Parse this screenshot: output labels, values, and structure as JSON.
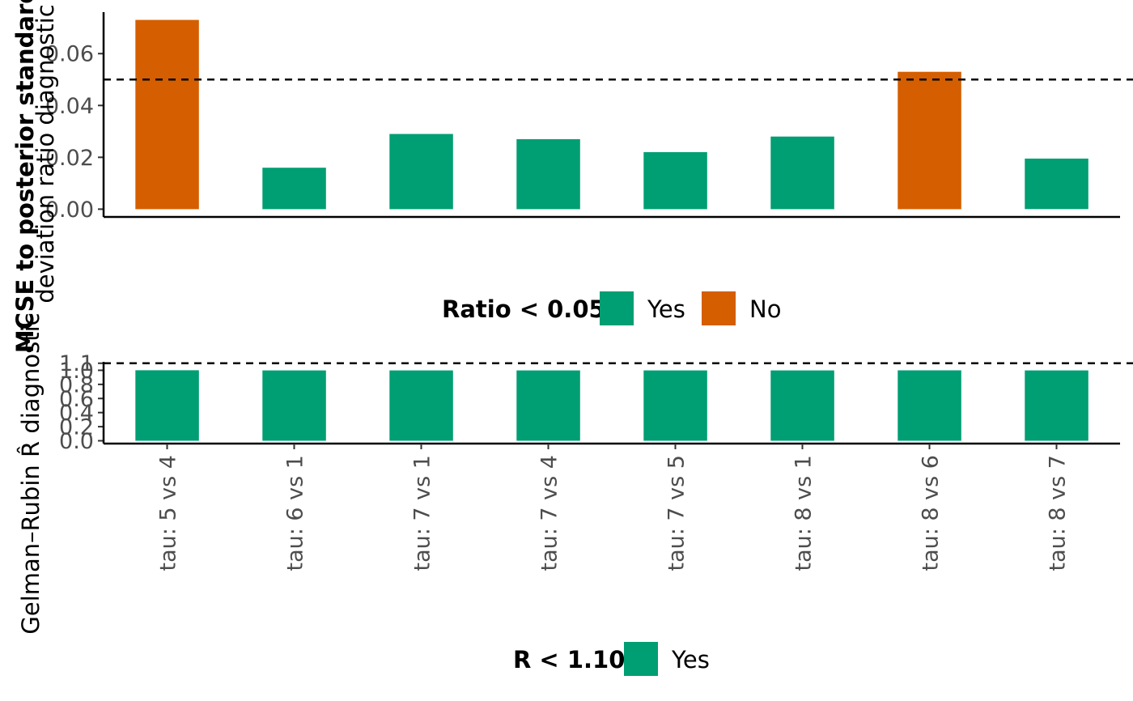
{
  "chart_data": [
    {
      "type": "bar",
      "ylabel_lines": [
        "MCSE to posterior standard",
        "deviation ratio diagnostic"
      ],
      "categories": [
        "tau: 5 vs 4",
        "tau: 6 vs 1",
        "tau: 7 vs 1",
        "tau: 7 vs 4",
        "tau: 7 vs 5",
        "tau: 8 vs 1",
        "tau: 8 vs 6",
        "tau: 8 vs 7"
      ],
      "values": [
        0.073,
        0.016,
        0.029,
        0.027,
        0.022,
        0.028,
        0.053,
        0.0195
      ],
      "groups": [
        "No",
        "Yes",
        "Yes",
        "Yes",
        "Yes",
        "Yes",
        "No",
        "Yes"
      ],
      "ylim": [
        -0.003,
        0.076
      ],
      "yticks": [
        0.0,
        0.02,
        0.04,
        0.06
      ],
      "ytick_labels": [
        "0.00",
        "0.02",
        "0.04",
        "0.06"
      ],
      "reference_line": 0.05,
      "legend": {
        "title": "Ratio < 0.05",
        "position": "bottom",
        "entries": [
          {
            "label": "Yes",
            "color": "#009E73"
          },
          {
            "label": "No",
            "color": "#D55E00"
          }
        ]
      }
    },
    {
      "type": "bar",
      "ylabel": "Gelman–Rubin R̂ diagnostic",
      "categories": [
        "tau: 5 vs 4",
        "tau: 6 vs 1",
        "tau: 7 vs 1",
        "tau: 7 vs 4",
        "tau: 7 vs 5",
        "tau: 8 vs 1",
        "tau: 8 vs 6",
        "tau: 8 vs 7"
      ],
      "values": [
        1.0,
        0.998,
        0.998,
        0.998,
        0.998,
        0.998,
        0.999,
        0.998
      ],
      "groups": [
        "Yes",
        "Yes",
        "Yes",
        "Yes",
        "Yes",
        "Yes",
        "Yes",
        "Yes"
      ],
      "ylim": [
        -0.04,
        1.12
      ],
      "yticks": [
        0.0,
        0.2,
        0.4,
        0.6,
        0.8,
        1.0,
        1.1
      ],
      "ytick_labels": [
        "0.0",
        "0.2",
        "0.4",
        "0.6",
        "0.8",
        "1.0",
        "1.1"
      ],
      "reference_line": 1.1,
      "legend": {
        "title": "R < 1.10",
        "position": "bottom",
        "entries": [
          {
            "label": "Yes",
            "color": "#009E73"
          }
        ]
      }
    }
  ]
}
